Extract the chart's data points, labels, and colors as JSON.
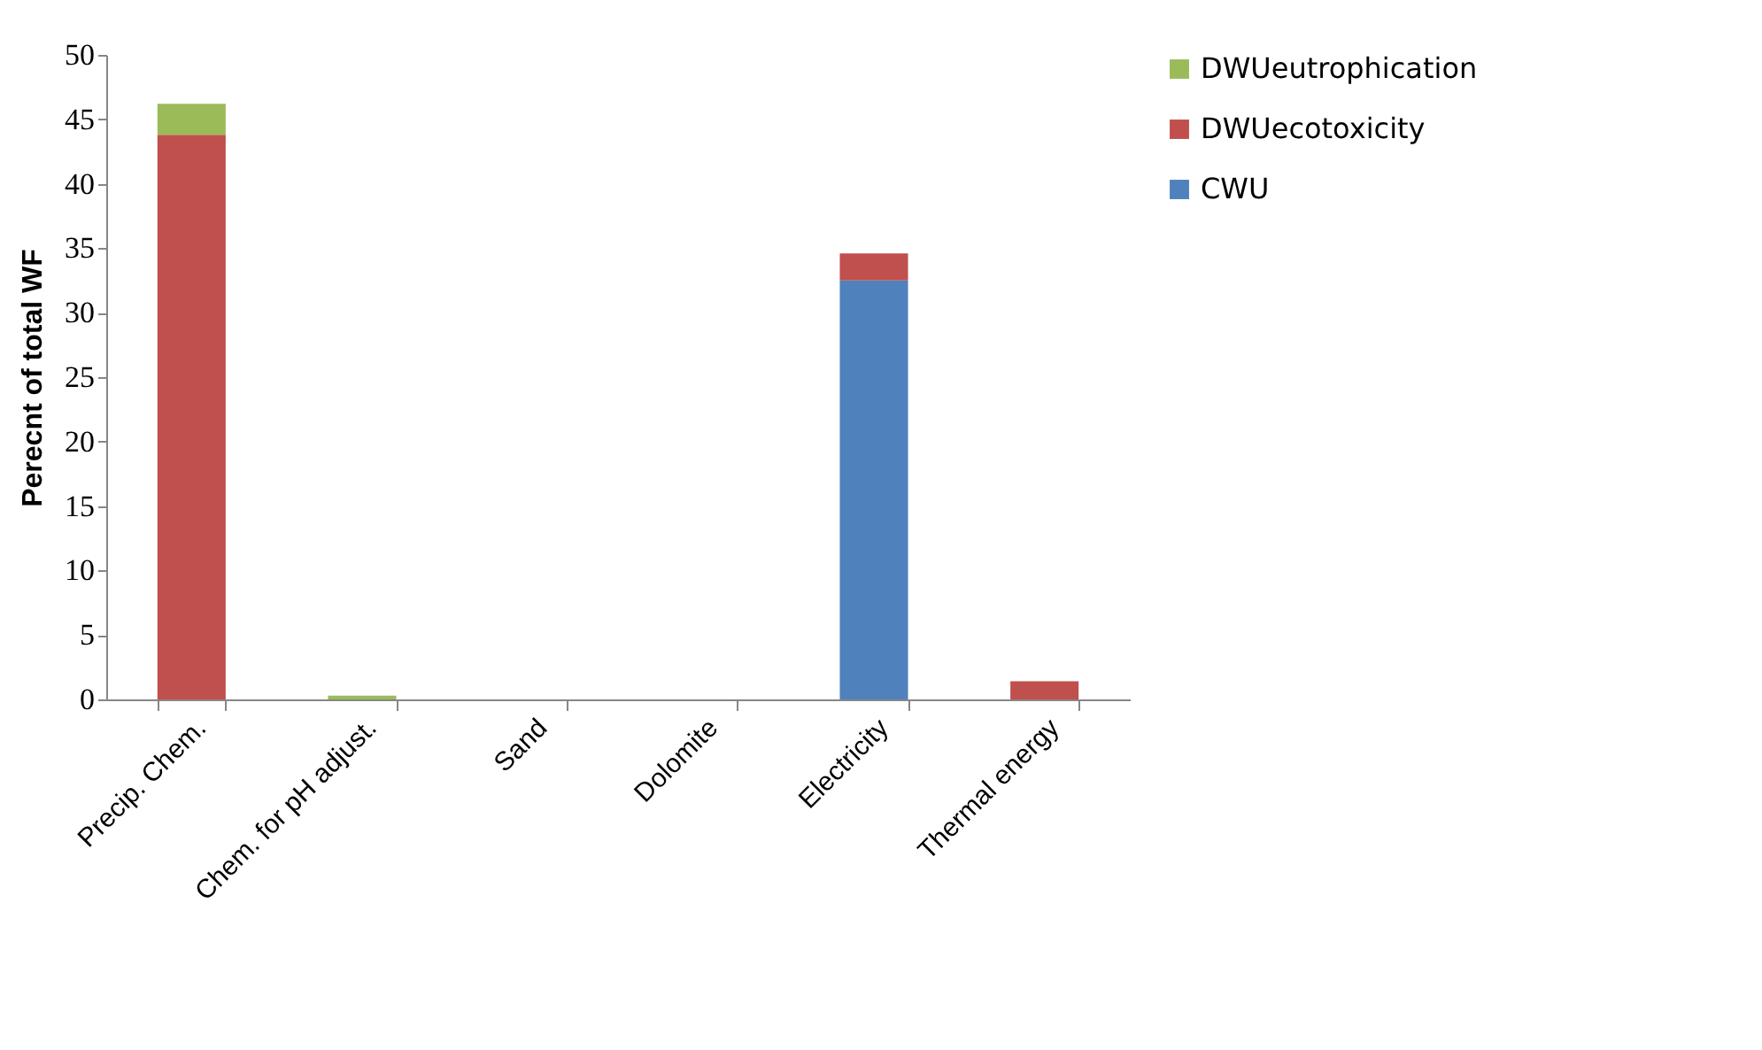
{
  "chart_data": {
    "type": "bar",
    "stacked": true,
    "ylabel": "Perecnt of total WF",
    "categories": [
      "Precip. Chem.",
      "Chem. for pH adjust.",
      "Sand",
      "Dolomite",
      "Electricity",
      "Thermal energy"
    ],
    "series": [
      {
        "name": "CWU",
        "color": "#4f81bd",
        "values": [
          0,
          0,
          0,
          0,
          32.5,
          0
        ]
      },
      {
        "name": "DWUecotoxicity",
        "color": "#c0504d",
        "values": [
          43.8,
          0,
          0,
          0,
          2.1,
          1.4
        ]
      },
      {
        "name": "DWUeutrophication",
        "color": "#9bbb59",
        "values": [
          2.4,
          0.3,
          0,
          0,
          0,
          0
        ]
      }
    ],
    "ylim": [
      0,
      50
    ],
    "yticks": [
      0,
      5,
      10,
      15,
      20,
      25,
      30,
      35,
      40,
      45,
      50
    ],
    "grid": false,
    "legend": "right"
  }
}
